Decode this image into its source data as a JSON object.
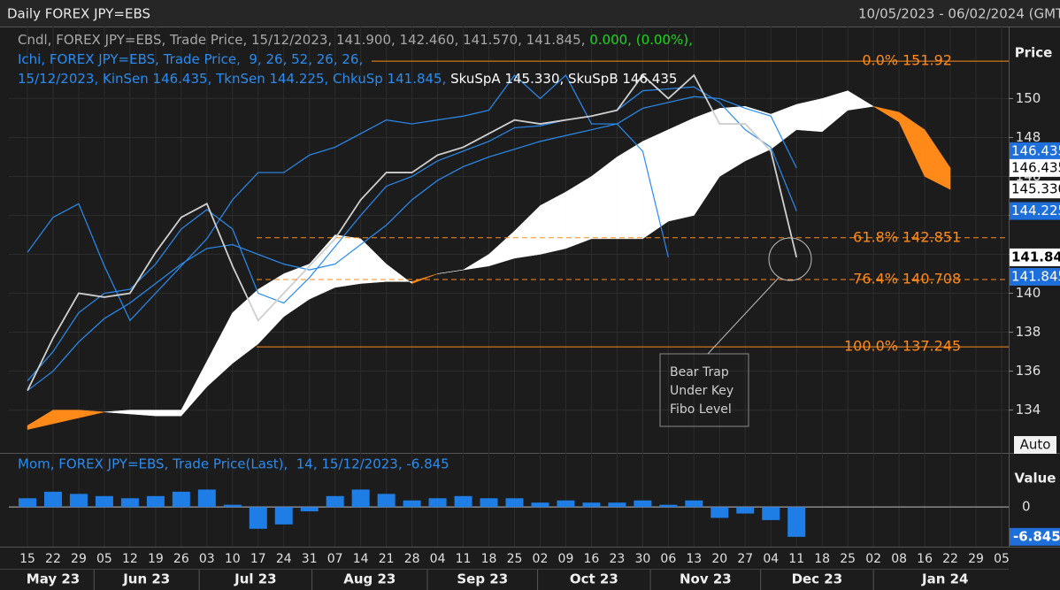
{
  "header": {
    "title": "Daily FOREX JPY=EBS",
    "range": "10/05/2023 - 06/02/2024 (GMT",
    "auto": "Auto"
  },
  "chart_data": [
    {
      "type": "ichimoku",
      "y_label": "Price",
      "info_lines": [
        [
          {
            "text": "Cndl, FOREX JPY=EBS, Trade Price, 15/12/2023, 141.900, 142.460, 141.570, 141.845, ",
            "color": "#a8a8a8"
          },
          {
            "text": "0.000, (0.00%),",
            "color": "#1ed51e"
          }
        ],
        [
          {
            "text": "Ichi, FOREX JPY=EBS, Trade Price,  9, 26, 52, 26, 26,",
            "color": "#2a8cf0"
          }
        ],
        [
          {
            "text": "15/12/2023, KinSen 146.435, TknSen 144.225, ChkuSp 141.845, ",
            "color": "#2a8cf0"
          },
          {
            "text": "SkuSpA 145.330, SkuSpB 146.435",
            "color": "#ffffff"
          }
        ]
      ],
      "ylim": [
        131.8,
        153.7
      ],
      "yticks": [
        134,
        136,
        138,
        140,
        142,
        144,
        146,
        148,
        150
      ],
      "grid": true,
      "series": [
        {
          "name": "Trade Price",
          "color": "#cfcfcf",
          "values": [
            135.0,
            137.7,
            140.0,
            139.8,
            140.0,
            142.1,
            143.9,
            144.6,
            141.4,
            138.6,
            140.0,
            141.4,
            142.8,
            144.8,
            146.2,
            146.2,
            147.1,
            147.5,
            148.2,
            148.9,
            148.7,
            148.9,
            149.1,
            149.4,
            151.2,
            150.0,
            151.2,
            148.7,
            148.7,
            147.3,
            141.845,
            null,
            null,
            null,
            null,
            null,
            null,
            null,
            null
          ]
        },
        {
          "name": "TknSen",
          "color": "#2a8cf0",
          "values": [
            135.5,
            137.0,
            139.0,
            140.0,
            140.2,
            141.5,
            143.3,
            144.3,
            143.3,
            140.0,
            139.5,
            140.8,
            142.4,
            144.0,
            145.5,
            146.0,
            146.8,
            147.3,
            147.8,
            148.5,
            148.6,
            148.9,
            149.1,
            149.4,
            150.4,
            150.5,
            150.6,
            149.8,
            148.4,
            147.5,
            144.225,
            null,
            null,
            null,
            null,
            null,
            null,
            null,
            null
          ]
        },
        {
          "name": "KinSen",
          "color": "#2a8cf0",
          "values": [
            135.0,
            136.0,
            137.5,
            138.7,
            139.5,
            140.5,
            141.5,
            142.3,
            142.5,
            142.0,
            141.5,
            141.2,
            141.5,
            142.5,
            143.5,
            144.8,
            145.8,
            146.5,
            147.0,
            147.4,
            147.8,
            148.1,
            148.4,
            148.7,
            149.5,
            149.8,
            150.1,
            150.0,
            149.5,
            149.1,
            146.435,
            null,
            null,
            null,
            null,
            null,
            null,
            null,
            null
          ]
        },
        {
          "name": "ChkuSp",
          "color": "#2a8cf0",
          "values": [
            142.1,
            143.9,
            144.6,
            141.4,
            138.6,
            140.0,
            141.4,
            142.8,
            144.8,
            146.2,
            146.2,
            147.1,
            147.5,
            148.2,
            148.9,
            148.7,
            148.9,
            149.1,
            149.4,
            151.2,
            150.0,
            151.2,
            148.7,
            148.7,
            147.3,
            141.845,
            null,
            null,
            null,
            null,
            null,
            null,
            null,
            null,
            null,
            null,
            null,
            null,
            null
          ]
        },
        {
          "name": "SkuSpA",
          "color": "#ffffff",
          "values": [
            133.0,
            133.3,
            133.6,
            133.9,
            134.0,
            134.0,
            134.0,
            136.5,
            139.0,
            140.2,
            141.0,
            141.5,
            143.0,
            142.8,
            141.5,
            140.5,
            141.0,
            141.2,
            142.0,
            143.2,
            144.5,
            145.2,
            146.0,
            147.0,
            147.8,
            148.4,
            149.0,
            149.5,
            149.6,
            149.2,
            149.7,
            150.0,
            150.4,
            149.6,
            148.8,
            146.0,
            145.33,
            null,
            null
          ]
        },
        {
          "name": "SkuSpB",
          "color": "#ff8a1a",
          "values": [
            133.2,
            134.0,
            134.0,
            133.9,
            133.8,
            133.7,
            133.7,
            135.2,
            136.4,
            137.4,
            138.8,
            139.7,
            140.3,
            140.5,
            140.6,
            140.6,
            141.0,
            141.2,
            141.4,
            141.8,
            142.0,
            142.3,
            142.8,
            142.8,
            142.8,
            143.7,
            144.0,
            146.0,
            146.8,
            147.4,
            148.4,
            148.3,
            149.4,
            149.6,
            149.3,
            148.4,
            146.435,
            null,
            null
          ]
        }
      ],
      "fibonacci": [
        {
          "pct": "0.0%",
          "value": 151.92,
          "line_style": "solid"
        },
        {
          "pct": "61.8%",
          "value": 142.851,
          "line_style": "dashed"
        },
        {
          "pct": "76.4%",
          "value": 140.708,
          "line_style": "dashed"
        },
        {
          "pct": "100.0%",
          "value": 137.245,
          "line_style": "solid"
        }
      ],
      "fib_color": "#ff8a1a",
      "price_markers": [
        {
          "value": 146.435,
          "label": "146.435",
          "bg": "#1e6fd9",
          "fg": "#ffffff"
        },
        {
          "value": 146.435,
          "label": "146.435",
          "bg": "#ffffff",
          "fg": "#000000"
        },
        {
          "value": 145.33,
          "label": "145.330",
          "bg": "#ffffff",
          "fg": "#000000"
        },
        {
          "value": 144.225,
          "label": "144.225",
          "bg": "#1e6fd9",
          "fg": "#ffffff"
        },
        {
          "value": 141.845,
          "label": "141.845",
          "bg": "#ffffff",
          "fg": "#000000"
        },
        {
          "value": 141.845,
          "label": "141.845",
          "bg": "#1e6fd9",
          "fg": "#ffffff"
        }
      ],
      "annotation": [
        "Bear Trap",
        "Under Key",
        "Fibo Level"
      ]
    },
    {
      "type": "bar",
      "y_label": "Value",
      "info": "Mom, FOREX JPY=EBS, Trade Price(Last),  14, 15/12/2023, -6.845",
      "ylim": [
        -9.1,
        12.2
      ],
      "yticks": [
        0
      ],
      "color": "#1e7ee6",
      "values": [
        2,
        3.5,
        3,
        2.5,
        2,
        2.5,
        3.5,
        4,
        0.5,
        -5,
        -4,
        -1,
        2.5,
        4,
        3,
        1.5,
        2,
        2.5,
        2,
        2,
        1,
        1.5,
        1,
        1,
        1.5,
        0.5,
        1.5,
        -2.5,
        -1.5,
        -3,
        -6.845,
        null,
        null,
        null,
        null,
        null,
        null,
        null,
        null
      ],
      "value_markers": [
        {
          "value": -6.845,
          "bg": "#1e6fd9",
          "fg": "#ffffff"
        }
      ],
      "categories": [
        "15",
        "22",
        "29",
        "05",
        "12",
        "19",
        "26",
        "03",
        "10",
        "17",
        "24",
        "31",
        "07",
        "14",
        "21",
        "28",
        "04",
        "11",
        "18",
        "25",
        "02",
        "09",
        "16",
        "23",
        "30",
        "06",
        "13",
        "20",
        "27",
        "04",
        "11",
        "18",
        "25",
        "02",
        "08",
        "16",
        "22",
        "29",
        "05"
      ],
      "months": [
        "May 23",
        "Jun 23",
        "Jul 23",
        "Aug 23",
        "Sep 23",
        "Oct 23",
        "Nov 23",
        "Dec 23",
        "Jan 24"
      ]
    }
  ]
}
